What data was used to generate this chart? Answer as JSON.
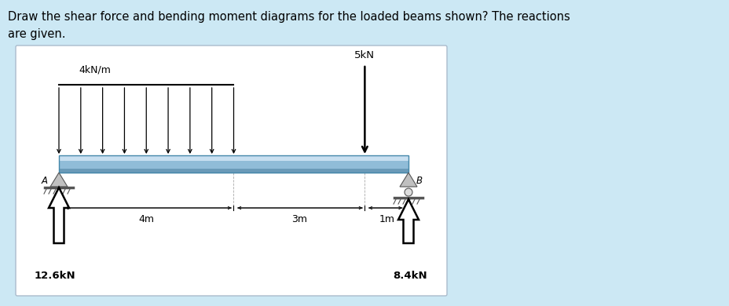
{
  "title_text": "Draw the shear force and bending moment diagrams for the loaded beams shown? The reactions\nare given.",
  "title_fontsize": 10.5,
  "background_color": "#cce8f4",
  "panel_facecolor": "#ffffff",
  "beam_top_color": "#a8cce0",
  "beam_mid_color": "#b8d8ec",
  "beam_bot_color": "#7aaac0",
  "distributed_load_label": "4kN/m",
  "point_load_label": "5kN",
  "reaction_A_label": "12.6kN",
  "reaction_B_label": "8.4kN",
  "label_A": "A",
  "label_B": "B",
  "dim_4m": "4m",
  "dim_3m": "3m",
  "dim_1m": "1m",
  "n_dist_arrows": 9,
  "support_color": "#bbbbbb",
  "ground_color": "#888888"
}
